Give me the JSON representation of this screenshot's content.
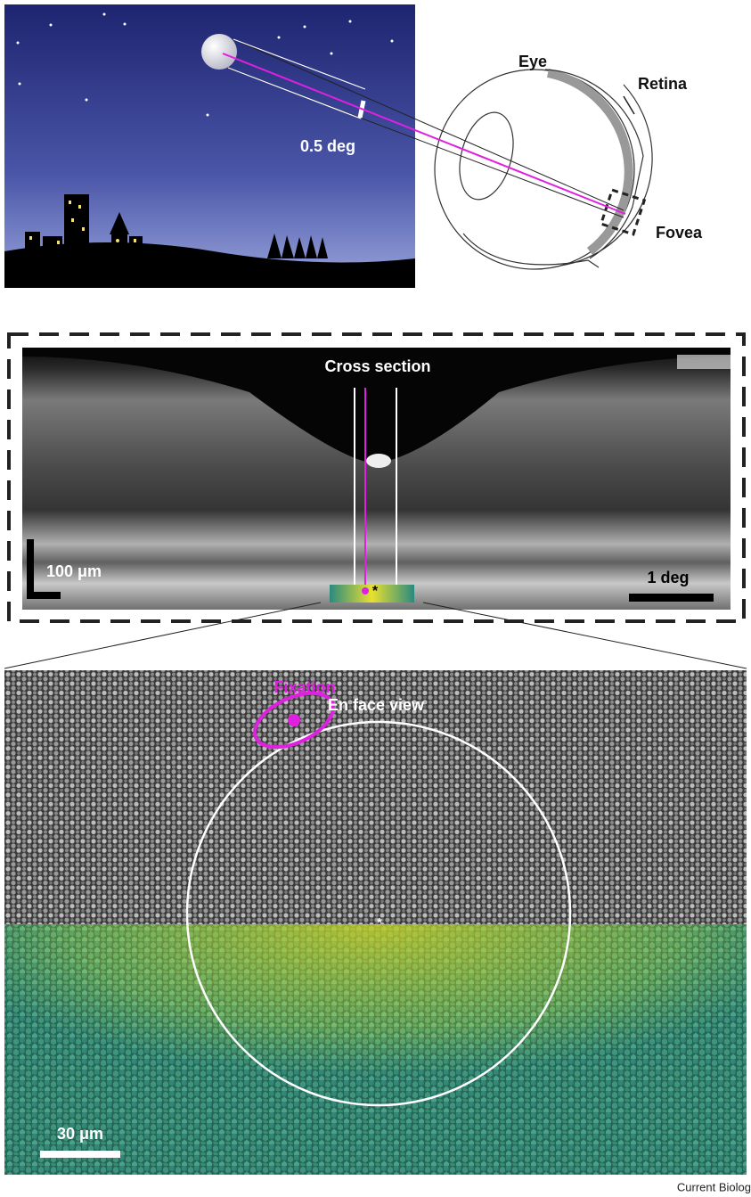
{
  "panel_a": {
    "angle_label": "0.5 deg",
    "eye_label": "Eye",
    "retina_label": "Retina",
    "fovea_label": "Fovea"
  },
  "panel_b": {
    "title": "Cross section",
    "scale_vertical": "100 μm",
    "scale_horizontal": "1 deg",
    "marker": "*"
  },
  "panel_c": {
    "title": "En face view",
    "fixation_label": "Fixation",
    "scale": "30 μm",
    "marker": "*"
  },
  "footer": "Current Biolog"
}
